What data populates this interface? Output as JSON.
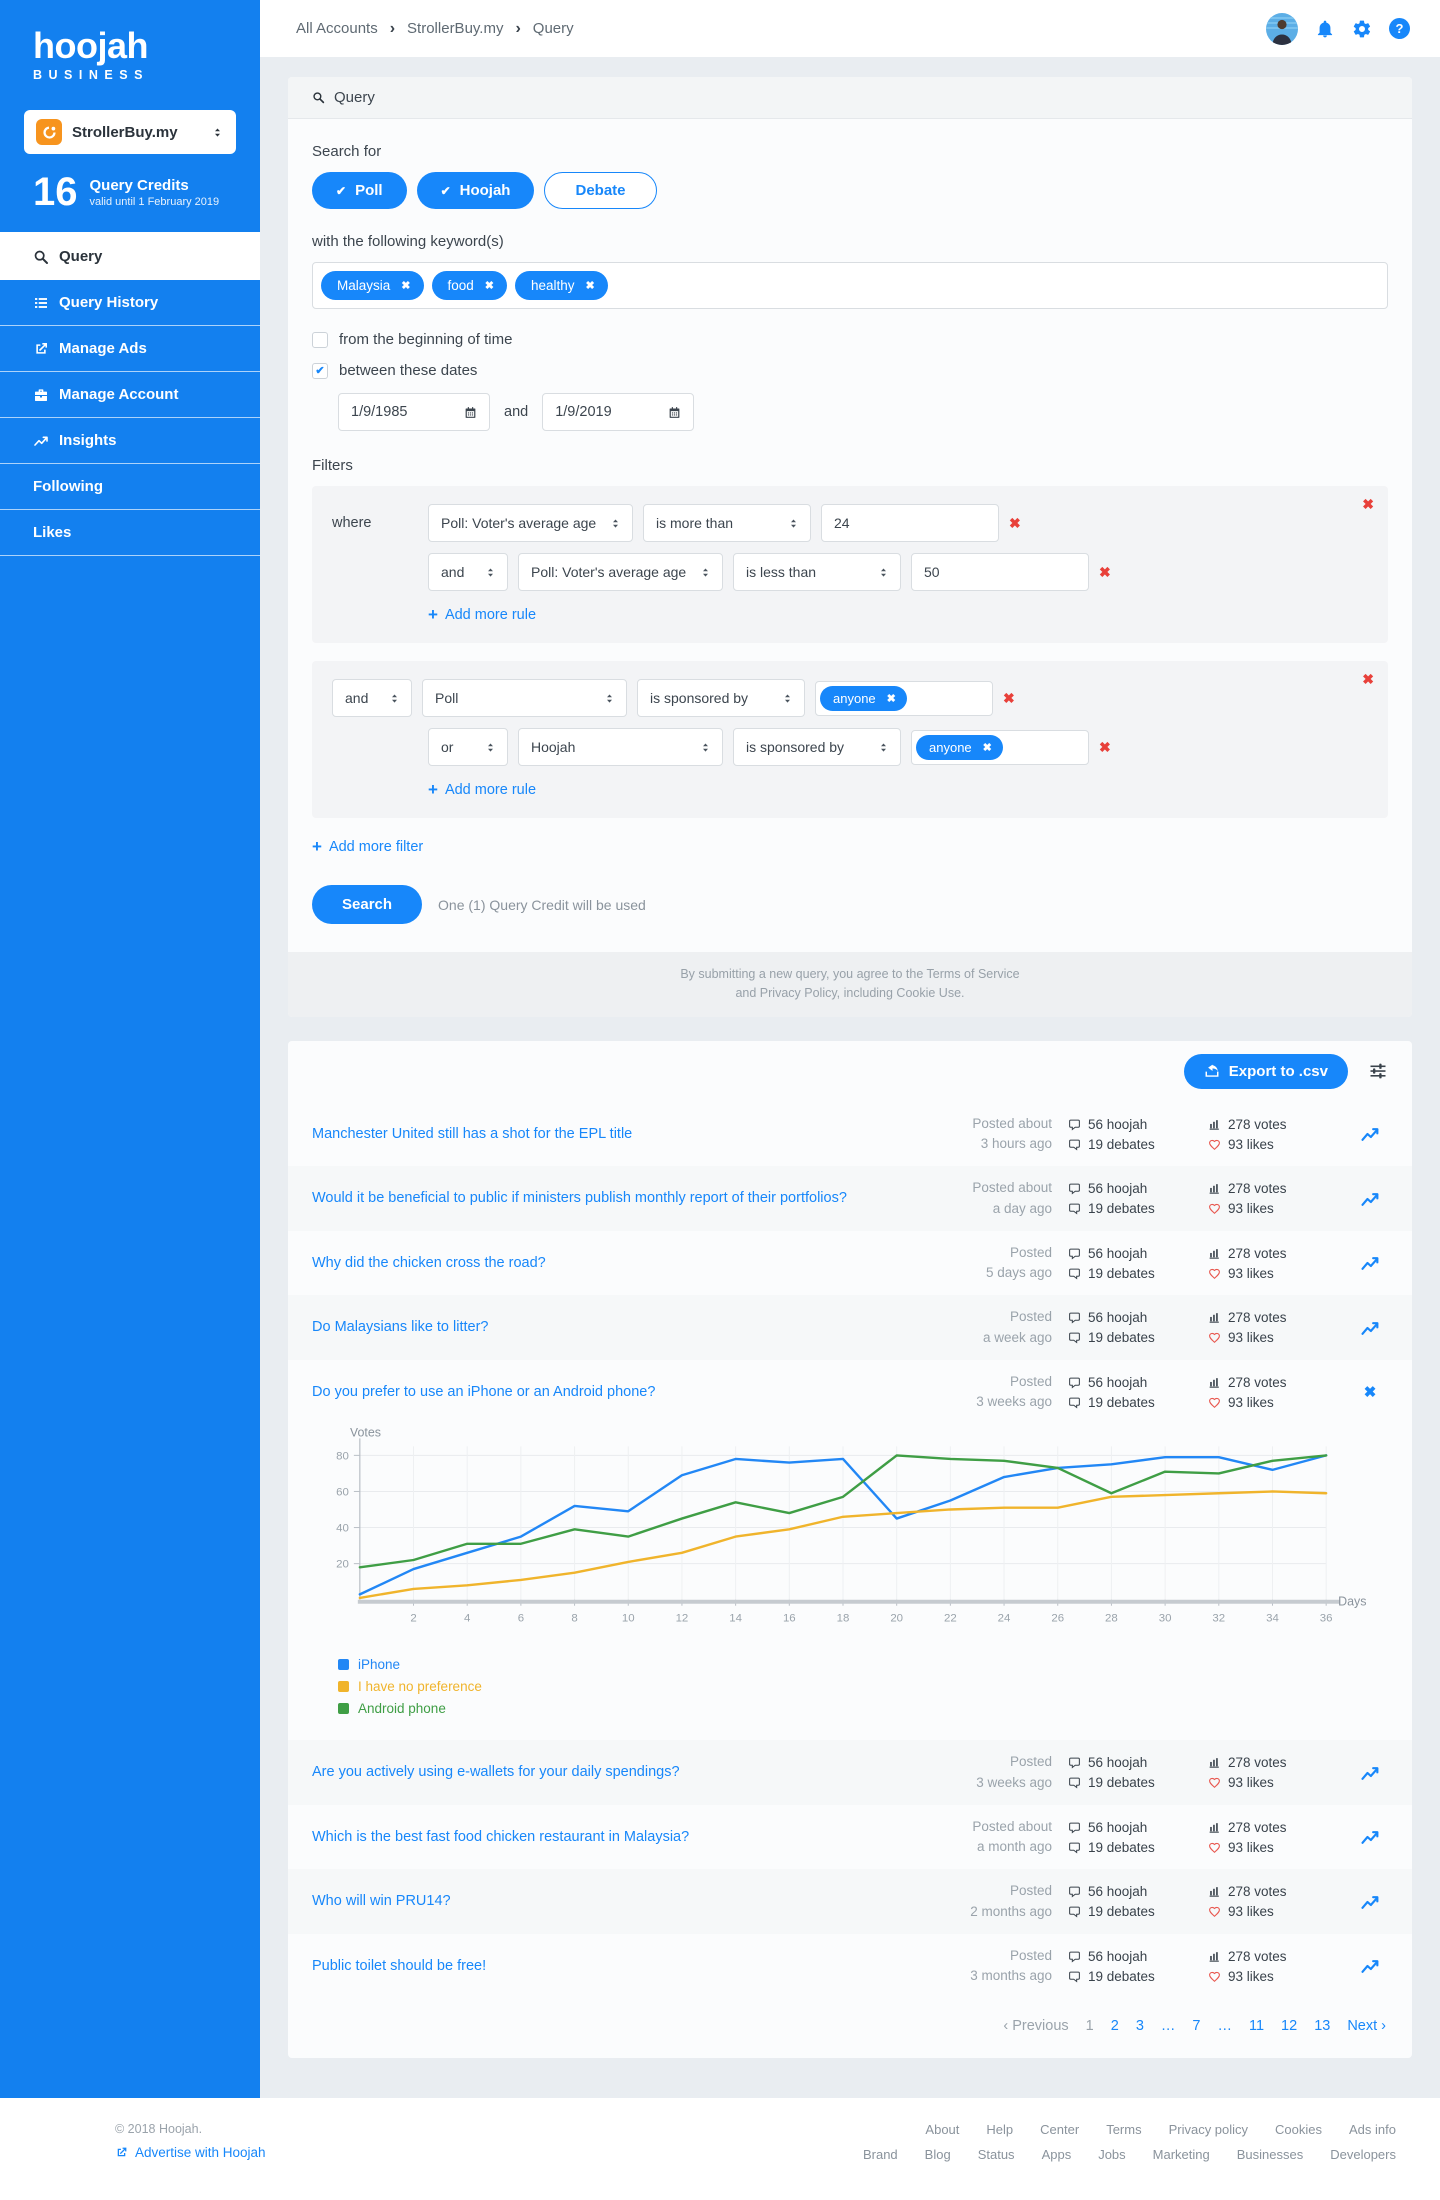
{
  "colors": {
    "brand_blue": "#1787fa",
    "sidebar_blue": "#1380ef",
    "danger_red": "#e8403a",
    "accent_orange": "#f7941e",
    "chart_blue": "#2287f5",
    "chart_yellow": "#f0b42c",
    "chart_green": "#3f9e45"
  },
  "icons": {
    "search-icon": "magnifier",
    "list-icon": "menu-list",
    "external-link-icon": "box-arrow",
    "briefcase-icon": "briefcase",
    "insights-icon": "trending-up",
    "bell-icon": "bell",
    "gear-icon": "gear",
    "help-icon": "question-circle",
    "calendar-icon": "calendar",
    "hoojah-bubble-icon": "speech-bubble",
    "debates-bubble-icon": "speech-bubble-reverse",
    "votes-bars-icon": "bar-chart",
    "likes-heart-icon": "heart-outline",
    "view-chart-icon": "line-chart-arrow",
    "export-icon": "share-arrow",
    "sliders-icon": "equalizer",
    "sort-caret-icon": "up-down-triangles",
    "remove-icon": "cross"
  },
  "sidebar": {
    "logo": "hoojah",
    "logo_sub": "BUSINESS",
    "account": {
      "name": "StrollerBuy.my"
    },
    "credits": {
      "count": "16",
      "label": "Query Credits",
      "valid": "valid until 1 February 2019"
    },
    "nav": [
      {
        "label": "Query"
      },
      {
        "label": "Query History"
      },
      {
        "label": "Manage Ads"
      },
      {
        "label": "Manage Account"
      },
      {
        "label": "Insights"
      },
      {
        "label": "Following"
      },
      {
        "label": "Likes"
      }
    ]
  },
  "header": {
    "breadcrumb": [
      "All Accounts",
      "StrollerBuy.my",
      "Query"
    ]
  },
  "query": {
    "panel_title": "Query",
    "search_for": "Search for",
    "types": [
      {
        "label": "Poll",
        "checked": true
      },
      {
        "label": "Hoojah",
        "checked": true
      },
      {
        "label": "Debate",
        "checked": false
      }
    ],
    "keywords_label": "with the following keyword(s)",
    "keywords": [
      "Malaysia",
      "food",
      "healthy"
    ],
    "option_beginning": "from the beginning of time",
    "option_between": "between these dates",
    "date_from": "1/9/1985",
    "date_and": "and",
    "date_to": "1/9/2019",
    "filters_label": "Filters",
    "filter1": {
      "where": "where",
      "rule1": {
        "field": "Poll: Voter's average age",
        "op": "is more than",
        "value": "24"
      },
      "rule2": {
        "conj": "and",
        "field": "Poll: Voter's average age",
        "op": "is less than",
        "value": "50"
      },
      "add_rule": "Add more rule"
    },
    "filter2": {
      "rule1": {
        "conj": "and",
        "field": "Poll",
        "op": "is sponsored by",
        "tag": "anyone"
      },
      "rule2": {
        "conj": "or",
        "field": "Hoojah",
        "op": "is sponsored by",
        "tag": "anyone"
      },
      "add_rule": "Add more rule"
    },
    "add_filter": "Add more filter",
    "search_button": "Search",
    "credit_note": "One (1) Query Credit will be used",
    "disclaimer1": "By submitting a new query, you agree to the Terms of Service",
    "disclaimer2": "and Privacy Policy, including Cookie Use."
  },
  "results": {
    "export_label": "Export to .csv",
    "stats": {
      "hoojah": "56 hoojah",
      "debates": "19 debates",
      "votes": "278 votes",
      "likes": "93 likes"
    },
    "rows": [
      {
        "title": "Manchester United still has a shot for the EPL title",
        "posted1": "Posted about",
        "posted2": "3 hours ago"
      },
      {
        "title": "Would it be beneficial to public if ministers publish monthly report of their portfolios?",
        "posted1": "Posted about",
        "posted2": "a day ago"
      },
      {
        "title": "Why did the chicken cross the road?",
        "posted1": "Posted",
        "posted2": "5 days ago"
      },
      {
        "title": "Do Malaysians like to litter?",
        "posted1": "Posted",
        "posted2": "a week ago"
      },
      {
        "title": "Do you prefer to use an iPhone or an Android phone?",
        "posted1": "Posted",
        "posted2": "3 weeks ago",
        "expanded": true
      },
      {
        "title": "Are you actively using e-wallets for your daily spendings?",
        "posted1": "Posted",
        "posted2": "3 weeks ago"
      },
      {
        "title": "Which is the best fast food chicken restaurant in Malaysia?",
        "posted1": "Posted about",
        "posted2": "a month ago"
      },
      {
        "title": "Who will win PRU14?",
        "posted1": "Posted",
        "posted2": "2 months ago"
      },
      {
        "title": "Public toilet should be free!",
        "posted1": "Posted",
        "posted2": "3 months ago"
      }
    ],
    "pagination": {
      "prev": "‹ Previous",
      "pages": [
        "1",
        "2",
        "3",
        "…",
        "7",
        "…",
        "11",
        "12",
        "13"
      ],
      "current": "1",
      "next": "Next ›"
    }
  },
  "chart_data": {
    "type": "line",
    "title": "Do you prefer to use an iPhone or an Android phone?",
    "xlabel": "Days",
    "ylabel": "Votes",
    "xlim": [
      0,
      36
    ],
    "ylim": [
      0,
      85
    ],
    "yticks": [
      20,
      40,
      60,
      80
    ],
    "grid": true,
    "legend_position": "bottom-left",
    "x": [
      0,
      2,
      4,
      6,
      8,
      10,
      12,
      14,
      16,
      18,
      20,
      22,
      24,
      26,
      28,
      30,
      32,
      34,
      36
    ],
    "series": [
      {
        "name": "iPhone",
        "color": "#2287f5",
        "values": [
          3,
          17,
          26,
          35,
          52,
          49,
          69,
          78,
          76,
          78,
          45,
          55,
          68,
          73,
          75,
          79,
          79,
          72,
          80
        ]
      },
      {
        "name": "I have no preference",
        "color": "#f0b42c",
        "values": [
          1,
          6,
          8,
          11,
          15,
          21,
          26,
          35,
          39,
          46,
          48,
          50,
          51,
          51,
          57,
          58,
          59,
          60,
          59
        ]
      },
      {
        "name": "Android phone",
        "color": "#3f9e45",
        "values": [
          18,
          22,
          31,
          31,
          39,
          35,
          45,
          54,
          48,
          57,
          80,
          78,
          77,
          73,
          59,
          71,
          70,
          77,
          80
        ]
      }
    ]
  },
  "footer": {
    "copyright": "© 2018 Hoojah.",
    "advertise": "Advertise with Hoojah",
    "links_row1": [
      "About",
      "Help",
      "Center",
      "Terms",
      "Privacy policy",
      "Cookies",
      "Ads info"
    ],
    "links_row2": [
      "Brand",
      "Blog",
      "Status",
      "Apps",
      "Jobs",
      "Marketing",
      "Businesses",
      "Developers"
    ]
  }
}
